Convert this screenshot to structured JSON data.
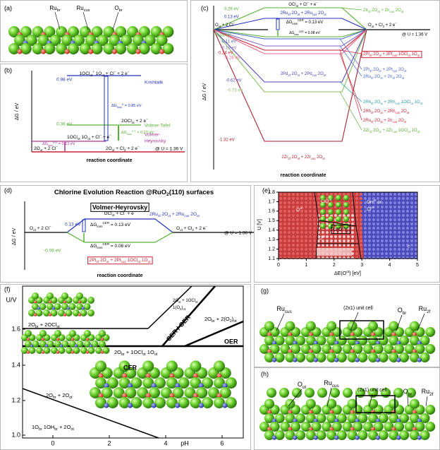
{
  "a": {
    "label": "(a)",
    "atoms": [
      [
        "Ru",
        {
          "sub": "br"
        }
      ],
      [
        "Ru",
        {
          "sub": "cus"
        }
      ],
      [
        "O",
        {
          "sub": "br"
        }
      ]
    ]
  },
  "b": {
    "label": "(b)",
    "y_axis": "ΔG / eV",
    "x_axis": "reaction coordinate",
    "texts": [
      [
        "1OCl",
        {
          "sub": "ot"
        },
        {
          "sup": "+"
        },
        " 1O",
        {
          "sub": "ot"
        },
        " + Cl",
        {
          "sup": "−"
        },
        " + 2 e",
        {
          "sup": "−"
        }
      ],
      "0.98 eV",
      "Krishtalik",
      [
        "ΔG",
        {
          "sub": "loss"
        },
        {
          "sup": "K"
        },
        " = 0.85 eV"
      ],
      "0.36 eV",
      [
        "2OCl",
        {
          "sub": "ot"
        },
        " + 2 e",
        {
          "sup": "−"
        }
      ],
      "Volmer-Tafel",
      [
        "ΔG",
        {
          "sub": "loss"
        },
        {
          "sup": "V-T"
        },
        " = 0.23 eV"
      ],
      "Volmer-",
      "Heyrovsky",
      [
        "1OCl",
        {
          "sub": "ot"
        },
        " 1O",
        {
          "sub": "ot"
        },
        " + Cl",
        {
          "sup": "−"
        },
        " + e",
        {
          "sup": "−"
        }
      ],
      [
        "2O",
        {
          "sub": "ot"
        },
        " + 2 Cl",
        {
          "sup": "−"
        }
      ],
      [
        "ΔG",
        {
          "sub": "loss"
        },
        {
          "sup": "V-H"
        },
        " = 0.13 eV"
      ],
      [
        "2O",
        {
          "sub": "ot"
        },
        " + Cl",
        {
          "sub": "2"
        },
        " + 2 e",
        {
          "sup": "−"
        }
      ],
      "@ U = 1.36 V"
    ]
  },
  "c": {
    "label": "(c)",
    "y_axis": "ΔG / eV",
    "x_axis": "reaction coordinate",
    "texts": [
      [
        "O",
        {
          "sub": "ot"
        },
        " + 2 Cl",
        {
          "sup": "−"
        }
      ],
      [
        "O",
        {
          "sub": "ot"
        },
        " + Cl",
        {
          "sub": "2"
        },
        " + 2 e",
        {
          "sup": "−"
        }
      ],
      "@ U = 1.36 V",
      [
        "OCl",
        {
          "sub": "ot"
        },
        " + Cl",
        {
          "sup": "−"
        },
        " + e",
        {
          "sup": "−"
        }
      ],
      [
        "2Ru",
        {
          "sub": "2f"
        },
        " 2O",
        {
          "sub": "ot"
        },
        " + 2Ru",
        {
          "sub": "cus"
        },
        " 2O",
        {
          "sub": "ot"
        }
      ],
      [
        "ΔG",
        {
          "sub": "loss"
        },
        {
          "sup": "CER"
        },
        " = 0.13 eV"
      ],
      [
        "ΔG",
        {
          "sub": "loss"
        },
        {
          "sup": "CER"
        },
        " = 0.08 eV"
      ],
      "0.26 eV",
      "0.13 eV",
      "-0.08 eV",
      "-0.11 eV",
      "-0.19 eV",
      "-0.24 eV",
      "-0.28 eV",
      "-0.62 eV",
      "-0.73 eV",
      "-1.32 eV",
      [
        "2Pd",
        {
          "sub": "2f"
        },
        " 2O",
        {
          "sub": "ot"
        },
        " + 2Pd",
        {
          "sub": "cus"
        },
        " 2O",
        {
          "sub": "ot"
        }
      ],
      [
        "2Zr",
        {
          "sub": "2f"
        },
        " 2O",
        {
          "sub": "ot"
        },
        " + 2Zr",
        {
          "sub": "cus"
        },
        " 2O",
        {
          "sub": "ot"
        }
      ],
      [
        "2Ir",
        {
          "sub": "2f"
        },
        " 2O",
        {
          "sub": "ot"
        },
        " + 2Ir",
        {
          "sub": "cus"
        },
        " 2O",
        {
          "sub": "ot"
        }
      ],
      [
        "2Pt",
        {
          "sub": "2f"
        },
        " 2O",
        {
          "sub": "ot"
        },
        " + 2Pt",
        {
          "sub": "cus"
        },
        " 1OCl",
        {
          "sub": "ot"
        },
        " 1O",
        {
          "sub": "ot"
        }
      ],
      [
        "2Pt",
        {
          "sub": "2f"
        },
        " 2O",
        {
          "sub": "br"
        },
        " + 2Pt",
        {
          "sub": "cus"
        },
        " 2O",
        {
          "sub": "ot"
        }
      ],
      [
        "2Ru",
        {
          "sub": "2f"
        },
        " 2O",
        {
          "sub": "ot"
        },
        " + 2Ir",
        {
          "sub": "2f"
        },
        " 2O",
        {
          "sub": "ot"
        }
      ],
      [
        "2Rh",
        {
          "sub": "2f"
        },
        " 2O",
        {
          "sub": "ot"
        },
        " + 2Rh",
        {
          "sub": "cus"
        },
        " 1OCl",
        {
          "sub": "ot"
        },
        " 1O",
        {
          "sub": "ot"
        }
      ],
      [
        "2Rh",
        {
          "sub": "2f"
        },
        " 2O",
        {
          "sub": "ot"
        },
        " + 2Rh",
        {
          "sub": "cus"
        },
        " 2O",
        {
          "sub": "ot"
        }
      ],
      [
        "2Ru",
        {
          "sub": "2f"
        },
        " 2O",
        {
          "sub": "ot"
        },
        " + 2Ir",
        {
          "sub": "cus"
        },
        " 2O",
        {
          "sub": "ot"
        }
      ],
      [
        "2Zr",
        {
          "sub": "2f"
        },
        " 2O",
        {
          "sub": "ot"
        },
        " + 2Zr",
        {
          "sub": "cus"
        },
        " 1OCl",
        {
          "sub": "ot"
        },
        " 1O",
        {
          "sub": "ot"
        }
      ]
    ]
  },
  "d": {
    "label": "(d)",
    "y_axis": "ΔG / eV",
    "x_axis": "reaction coordinate",
    "texts": [
      [
        "Chlorine Evolution Reaction @RuO",
        {
          "sub": "2"
        },
        "(110) surfaces"
      ],
      "Volmer-Heyrovsky",
      [
        "O",
        {
          "sub": "ot"
        },
        " + 2 Cl",
        {
          "sup": "−"
        }
      ],
      [
        "O",
        {
          "sub": "ot"
        },
        " + Cl",
        {
          "sub": "2"
        },
        " + 2 e",
        {
          "sup": "−"
        }
      ],
      "@ U = 1.36 V",
      [
        "OCl",
        {
          "sub": "ot"
        },
        " + Cl",
        {
          "sup": "−"
        },
        " + e",
        {
          "sup": "−"
        }
      ],
      "0.13 eV",
      [
        "2Ru",
        {
          "sub": "2f"
        },
        " 2O",
        {
          "sub": "ot"
        },
        " + 2Ru",
        {
          "sub": "cus"
        },
        " 2O",
        {
          "sub": "ot"
        }
      ],
      [
        "ΔG",
        {
          "sub": "loss"
        },
        {
          "sup": "CER"
        },
        " = 0.13 eV"
      ],
      "-0.08 eV",
      [
        "ΔG",
        {
          "sub": "loss"
        },
        {
          "sup": "CER"
        },
        " = 0.08 eV"
      ],
      [
        "2Pt",
        {
          "sub": "2f"
        },
        " 2O",
        {
          "sub": "ot"
        },
        " + 2Pt",
        {
          "sub": "cus"
        },
        " 1OCl",
        {
          "sub": "ot"
        },
        " 1O",
        {
          "sub": "ot"
        }
      ]
    ]
  },
  "e": {
    "label": "(e)",
    "y_axis": "U [V]",
    "x_axis": [
      "ΔE(O",
      {
        "sup": "ot"
      },
      ") [eV]"
    ],
    "xticks": [
      "0",
      "1",
      "2",
      "3",
      "4",
      "5"
    ],
    "yticks": [
      "1.1",
      "1.2",
      "1.3",
      "1.4",
      "1.5",
      "1.6",
      "1.7",
      "1.8"
    ],
    "texts": [
      [
        "O",
        {
          "sup": "ot"
        }
      ],
      [
        "ClO",
        {
          "sup": "ot"
        }
      ],
      [
        "OH",
        {
          "sup": "ot"
        },
        " or"
      ],
      [
        "Cl",
        {
          "sup": "ot"
        }
      ],
      [
        "Cl(O",
        {
          "sup": "ot"
        },
        ")",
        {
          "sub": "2"
        }
      ],
      [
        "O",
        {
          "sup": "ot"
        }
      ],
      [
        "OH",
        {
          "sup": "ot"
        },
        " or Cl",
        {
          "sup": "ot"
        }
      ],
      "c"
    ]
  },
  "f": {
    "label": "(f)",
    "y_axis": "U/V",
    "x_axis": "pH",
    "yticks": [
      "1.6",
      "1.4",
      "1.2",
      "1.0"
    ],
    "xticks": [
      "0",
      "2",
      "4",
      "6"
    ],
    "texts": [
      [
        "2O",
        {
          "sub": "br"
        },
        " + 2OCl",
        {
          "sub": "ot"
        }
      ],
      [
        "2O",
        {
          "sub": "br"
        },
        " + 1OCl",
        {
          "sub": "ot"
        },
        " 1O",
        {
          "sub": "ot"
        }
      ],
      [
        "2O",
        {
          "sub": "br"
        },
        " + 2(O",
        {
          "sub": "2"
        },
        ")",
        {
          "sub": "ot"
        }
      ],
      [
        "2O",
        {
          "sub": "ot"
        },
        " + 1OCl",
        {
          "sub": "ot"
        }
      ],
      [
        "1(O",
        {
          "sub": "2"
        },
        ")",
        {
          "sub": "ot"
        }
      ],
      "CER / OER",
      "OER",
      "CER",
      [
        "2O",
        {
          "sub": "br"
        },
        " + 2O",
        {
          "sub": "ot"
        }
      ],
      [
        "1O",
        {
          "sub": "br"
        },
        " 1OH",
        {
          "sub": "br"
        },
        " + 2O",
        {
          "sub": "ot"
        }
      ]
    ]
  },
  "g": {
    "label": "(g)",
    "texts": [
      [
        "Ru",
        {
          "sub": "cus"
        }
      ],
      "(2x1) unit cell",
      [
        "O",
        {
          "sub": "br"
        }
      ],
      [
        "Ru",
        {
          "sub": "2f"
        }
      ]
    ]
  },
  "h": {
    "label": "(h)",
    "texts": [
      [
        "O",
        {
          "sub": "ot"
        }
      ],
      [
        "Ru",
        {
          "sub": "cus"
        }
      ],
      "(2x1) unit cell",
      [
        "O",
        {
          "sub": "br"
        }
      ],
      [
        "Ru",
        {
          "sub": "2f"
        }
      ]
    ]
  }
}
